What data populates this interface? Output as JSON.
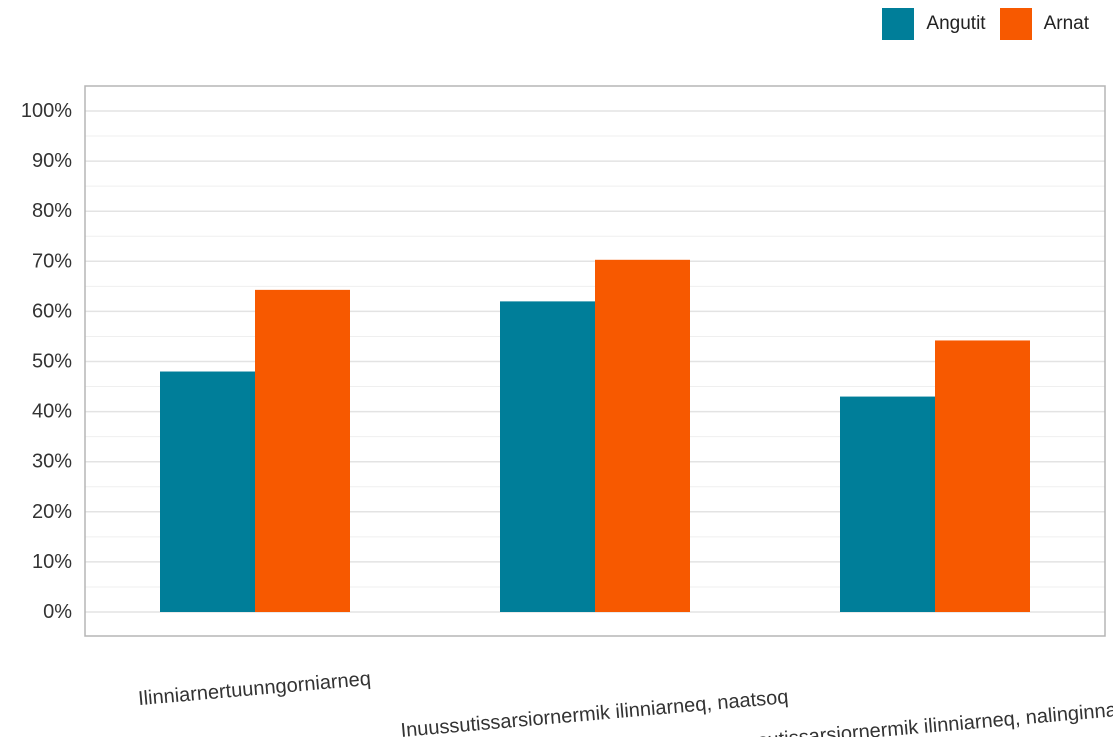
{
  "chart_data": {
    "type": "bar",
    "categories": [
      "Ilinniarnertuunngorniarneq",
      "Inuussutissarsiornermik ilinniarneq, naatsoq",
      "Inuussutissarsiornermik ilinniarneq, nalinginnaasoq"
    ],
    "series": [
      {
        "name": "Angutit",
        "values": [
          48,
          62,
          43
        ],
        "color": "#007e99"
      },
      {
        "name": "Arnat",
        "values": [
          64.3,
          70.3,
          54.2
        ],
        "color": "#f75900"
      }
    ],
    "y_tick_labels": [
      "0%",
      "10%",
      "20%",
      "30%",
      "40%",
      "50%",
      "60%",
      "70%",
      "80%",
      "90%",
      "100%"
    ],
    "ylim": [
      0,
      100
    ],
    "legend_position": "top-right",
    "grid": true
  }
}
